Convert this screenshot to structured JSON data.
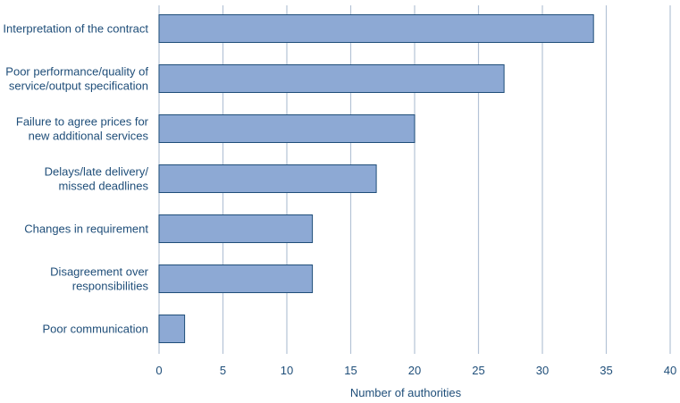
{
  "chart_data": {
    "type": "bar",
    "orientation": "horizontal",
    "title": "",
    "xlabel": "Number of authorities",
    "ylabel": "",
    "xlim": [
      0,
      40
    ],
    "xticks": [
      0,
      5,
      10,
      15,
      20,
      25,
      30,
      35,
      40
    ],
    "grid": "vertical",
    "categories": [
      [
        "Interpretation of the contract"
      ],
      [
        "Poor performance/quality of",
        "service/output specification"
      ],
      [
        "Failure to agree prices for",
        "new additional services"
      ],
      [
        "Delays/late delivery/",
        "missed deadlines"
      ],
      [
        "Changes in requirement"
      ],
      [
        "Disagreement over",
        "responsibilities"
      ],
      [
        "Poor communication"
      ]
    ],
    "values": [
      34,
      27,
      20,
      17,
      12,
      12,
      2
    ],
    "colors": {
      "bar_fill": "#8da9d4",
      "bar_stroke": "#1f4e79",
      "grid": "#b4c3d6",
      "text": "#1f4e79"
    }
  }
}
